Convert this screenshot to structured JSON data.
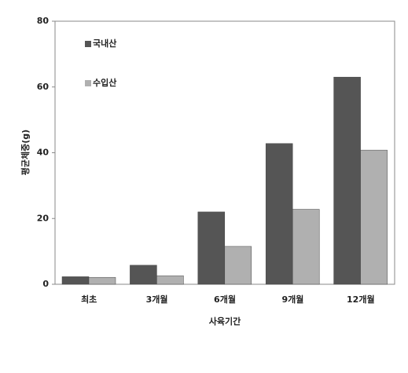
{
  "chart_data": {
    "type": "bar",
    "x_label": "사육기간",
    "y_label": "평균체중(g)",
    "categories": [
      "최초",
      "3개월",
      "6개월",
      "9개월",
      "12개월"
    ],
    "series": [
      {
        "name": "국내산",
        "color": "#555555",
        "values": [
          2.3,
          5.8,
          22,
          42.8,
          63
        ]
      },
      {
        "name": "수입산",
        "color": "#b0b0b0",
        "values": [
          2.1,
          2.6,
          11.5,
          22.8,
          40.8
        ]
      }
    ],
    "ylim": [
      0,
      80
    ],
    "yticks": [
      0,
      20,
      40,
      60,
      80
    ]
  }
}
